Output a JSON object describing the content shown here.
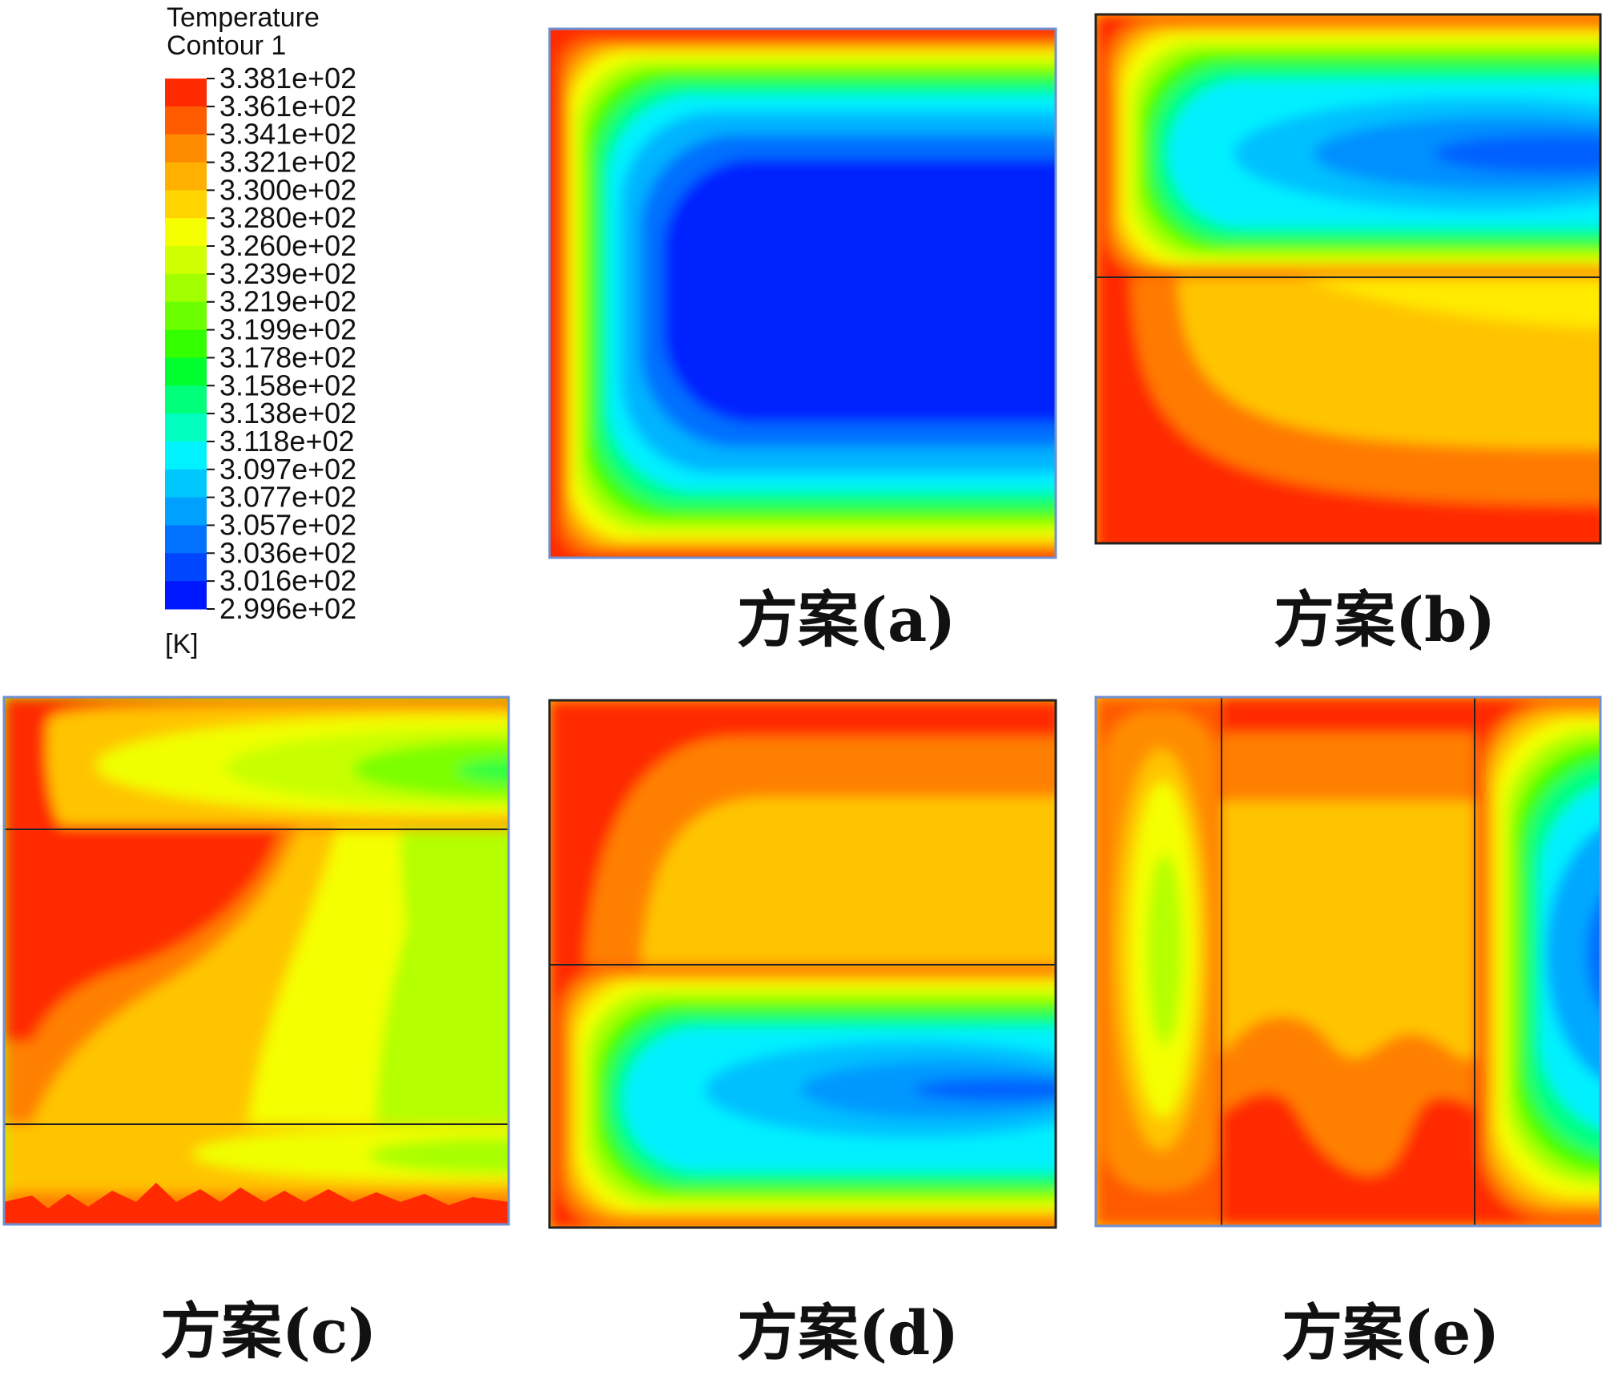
{
  "legend": {
    "title_line1": "Temperature",
    "title_line2": "Contour 1",
    "unit": "[K]",
    "ticks": [
      "3.381e+02",
      "3.361e+02",
      "3.341e+02",
      "3.321e+02",
      "3.300e+02",
      "3.280e+02",
      "3.260e+02",
      "3.239e+02",
      "3.219e+02",
      "3.199e+02",
      "3.178e+02",
      "3.158e+02",
      "3.138e+02",
      "3.118e+02",
      "3.097e+02",
      "3.077e+02",
      "3.057e+02",
      "3.036e+02",
      "3.016e+02",
      "2.996e+02"
    ],
    "colors_top_to_bottom": [
      "#ff2a00",
      "#ff5c00",
      "#ff8c00",
      "#ffb000",
      "#ffd400",
      "#f6ff00",
      "#cfff00",
      "#a2ff00",
      "#6cff00",
      "#33ff00",
      "#00ff2e",
      "#00ff7a",
      "#00ffc0",
      "#00f2ff",
      "#00c8ff",
      "#00a0ff",
      "#0072ff",
      "#0046ff",
      "#0018ff"
    ]
  },
  "captions": {
    "a": "方案(a)",
    "b": "方案(b)",
    "c": "方案(c)",
    "d": "方案(d)",
    "e": "方案(e)"
  }
}
